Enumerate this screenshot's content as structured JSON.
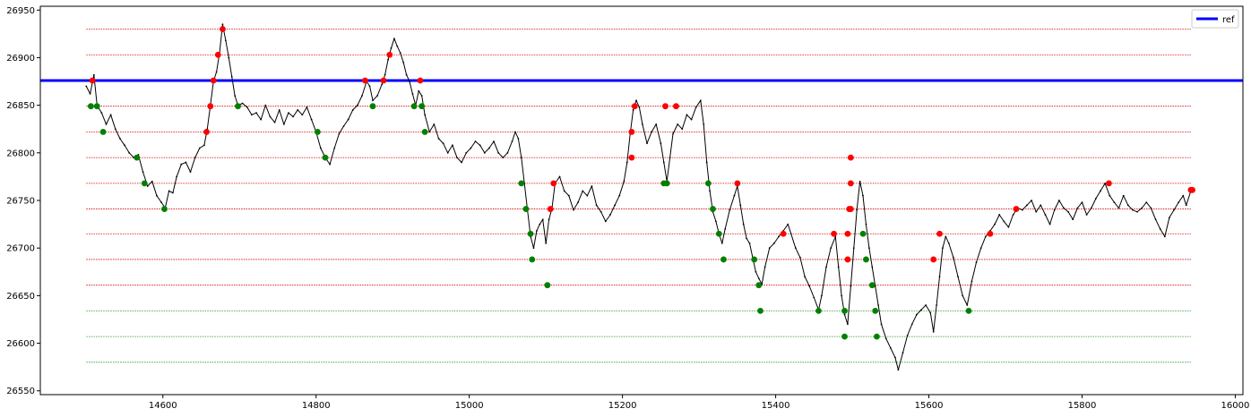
{
  "chart_data": {
    "type": "line",
    "title": "",
    "xlabel": "",
    "ylabel": "",
    "xlim": [
      14440,
      16010
    ],
    "ylim": [
      26546,
      26954
    ],
    "xticks": [
      14600,
      14800,
      15000,
      15200,
      15400,
      15600,
      15800,
      16000
    ],
    "yticks": [
      26550,
      26600,
      26650,
      26700,
      26750,
      26800,
      26850,
      26900,
      26950
    ],
    "grid": false,
    "legend": {
      "position": "top-right",
      "entries": [
        {
          "label": "ref",
          "color": "#0000ff"
        }
      ]
    },
    "reference_line": {
      "name": "ref",
      "y": 26876,
      "color": "#0000ff"
    },
    "level_lines": {
      "x_range": [
        14500,
        15942
      ],
      "red": [
        26930,
        26903,
        26849,
        26822,
        26795,
        26768,
        26741,
        26715,
        26688,
        26661
      ],
      "green": [
        26634,
        26607,
        26580
      ]
    },
    "price_series": {
      "color": "#000000",
      "points": [
        [
          14500,
          26870
        ],
        [
          14505,
          26862
        ],
        [
          14510,
          26882
        ],
        [
          14514,
          26850
        ],
        [
          14520,
          26842
        ],
        [
          14526,
          26830
        ],
        [
          14532,
          26840
        ],
        [
          14538,
          26825
        ],
        [
          14544,
          26815
        ],
        [
          14550,
          26808
        ],
        [
          14556,
          26800
        ],
        [
          14562,
          26795
        ],
        [
          14568,
          26798
        ],
        [
          14574,
          26780
        ],
        [
          14580,
          26765
        ],
        [
          14586,
          26770
        ],
        [
          14592,
          26755
        ],
        [
          14598,
          26748
        ],
        [
          14603,
          26742
        ],
        [
          14608,
          26760
        ],
        [
          14613,
          26758
        ],
        [
          14618,
          26775
        ],
        [
          14624,
          26788
        ],
        [
          14630,
          26790
        ],
        [
          14636,
          26780
        ],
        [
          14642,
          26795
        ],
        [
          14648,
          26805
        ],
        [
          14654,
          26808
        ],
        [
          14658,
          26825
        ],
        [
          14662,
          26850
        ],
        [
          14666,
          26875
        ],
        [
          14670,
          26885
        ],
        [
          14674,
          26905
        ],
        [
          14678,
          26935
        ],
        [
          14682,
          26918
        ],
        [
          14686,
          26900
        ],
        [
          14690,
          26880
        ],
        [
          14694,
          26860
        ],
        [
          14698,
          26850
        ],
        [
          14704,
          26852
        ],
        [
          14710,
          26848
        ],
        [
          14716,
          26840
        ],
        [
          14722,
          26842
        ],
        [
          14728,
          26835
        ],
        [
          14734,
          26850
        ],
        [
          14740,
          26838
        ],
        [
          14746,
          26832
        ],
        [
          14752,
          26845
        ],
        [
          14758,
          26830
        ],
        [
          14764,
          26842
        ],
        [
          14770,
          26838
        ],
        [
          14776,
          26845
        ],
        [
          14782,
          26840
        ],
        [
          14788,
          26848
        ],
        [
          14794,
          26835
        ],
        [
          14800,
          26822
        ],
        [
          14806,
          26805
        ],
        [
          14812,
          26795
        ],
        [
          14818,
          26788
        ],
        [
          14824,
          26805
        ],
        [
          14830,
          26820
        ],
        [
          14836,
          26828
        ],
        [
          14842,
          26835
        ],
        [
          14848,
          26845
        ],
        [
          14854,
          26850
        ],
        [
          14860,
          26860
        ],
        [
          14866,
          26875
        ],
        [
          14870,
          26870
        ],
        [
          14874,
          26855
        ],
        [
          14880,
          26860
        ],
        [
          14886,
          26872
        ],
        [
          14890,
          26882
        ],
        [
          14894,
          26898
        ],
        [
          14898,
          26910
        ],
        [
          14902,
          26920
        ],
        [
          14906,
          26912
        ],
        [
          14910,
          26905
        ],
        [
          14914,
          26895
        ],
        [
          14918,
          26882
        ],
        [
          14922,
          26875
        ],
        [
          14926,
          26862
        ],
        [
          14930,
          26850
        ],
        [
          14934,
          26865
        ],
        [
          14938,
          26860
        ],
        [
          14942,
          26840
        ],
        [
          14948,
          26822
        ],
        [
          14954,
          26830
        ],
        [
          14960,
          26815
        ],
        [
          14966,
          26810
        ],
        [
          14972,
          26800
        ],
        [
          14978,
          26808
        ],
        [
          14984,
          26795
        ],
        [
          14990,
          26790
        ],
        [
          14996,
          26800
        ],
        [
          15002,
          26805
        ],
        [
          15008,
          26812
        ],
        [
          15014,
          26808
        ],
        [
          15020,
          26800
        ],
        [
          15026,
          26805
        ],
        [
          15032,
          26812
        ],
        [
          15038,
          26800
        ],
        [
          15044,
          26795
        ],
        [
          15050,
          26800
        ],
        [
          15056,
          26812
        ],
        [
          15060,
          26822
        ],
        [
          15064,
          26815
        ],
        [
          15068,
          26795
        ],
        [
          15072,
          26768
        ],
        [
          15076,
          26740
        ],
        [
          15080,
          26712
        ],
        [
          15084,
          26700
        ],
        [
          15088,
          26718
        ],
        [
          15092,
          26725
        ],
        [
          15096,
          26730
        ],
        [
          15100,
          26705
        ],
        [
          15104,
          26730
        ],
        [
          15108,
          26742
        ],
        [
          15112,
          26768
        ],
        [
          15118,
          26775
        ],
        [
          15124,
          26760
        ],
        [
          15130,
          26755
        ],
        [
          15136,
          26740
        ],
        [
          15142,
          26748
        ],
        [
          15148,
          26760
        ],
        [
          15154,
          26755
        ],
        [
          15160,
          26765
        ],
        [
          15166,
          26745
        ],
        [
          15172,
          26738
        ],
        [
          15178,
          26728
        ],
        [
          15184,
          26735
        ],
        [
          15190,
          26745
        ],
        [
          15196,
          26755
        ],
        [
          15202,
          26770
        ],
        [
          15206,
          26790
        ],
        [
          15210,
          26820
        ],
        [
          15214,
          26845
        ],
        [
          15218,
          26855
        ],
        [
          15222,
          26848
        ],
        [
          15226,
          26830
        ],
        [
          15232,
          26810
        ],
        [
          15238,
          26822
        ],
        [
          15244,
          26830
        ],
        [
          15250,
          26810
        ],
        [
          15254,
          26790
        ],
        [
          15258,
          26770
        ],
        [
          15262,
          26795
        ],
        [
          15266,
          26820
        ],
        [
          15272,
          26830
        ],
        [
          15278,
          26825
        ],
        [
          15284,
          26840
        ],
        [
          15290,
          26835
        ],
        [
          15296,
          26848
        ],
        [
          15302,
          26855
        ],
        [
          15306,
          26830
        ],
        [
          15310,
          26790
        ],
        [
          15314,
          26760
        ],
        [
          15318,
          26738
        ],
        [
          15322,
          26728
        ],
        [
          15326,
          26715
        ],
        [
          15330,
          26705
        ],
        [
          15334,
          26720
        ],
        [
          15340,
          26740
        ],
        [
          15346,
          26755
        ],
        [
          15350,
          26765
        ],
        [
          15354,
          26745
        ],
        [
          15358,
          26725
        ],
        [
          15362,
          26710
        ],
        [
          15366,
          26705
        ],
        [
          15370,
          26690
        ],
        [
          15374,
          26675
        ],
        [
          15378,
          26668
        ],
        [
          15382,
          26662
        ],
        [
          15386,
          26680
        ],
        [
          15392,
          26700
        ],
        [
          15398,
          26705
        ],
        [
          15404,
          26712
        ],
        [
          15410,
          26718
        ],
        [
          15416,
          26725
        ],
        [
          15420,
          26715
        ],
        [
          15426,
          26700
        ],
        [
          15432,
          26690
        ],
        [
          15438,
          26670
        ],
        [
          15444,
          26660
        ],
        [
          15450,
          26648
        ],
        [
          15456,
          26635
        ],
        [
          15460,
          26650
        ],
        [
          15466,
          26680
        ],
        [
          15472,
          26700
        ],
        [
          15478,
          26712
        ],
        [
          15482,
          26680
        ],
        [
          15486,
          26650
        ],
        [
          15490,
          26630
        ],
        [
          15494,
          26620
        ],
        [
          15498,
          26660
        ],
        [
          15502,
          26700
        ],
        [
          15506,
          26740
        ],
        [
          15510,
          26770
        ],
        [
          15514,
          26755
        ],
        [
          15518,
          26725
        ],
        [
          15522,
          26700
        ],
        [
          15526,
          26680
        ],
        [
          15530,
          26660
        ],
        [
          15534,
          26640
        ],
        [
          15538,
          26620
        ],
        [
          15544,
          26605
        ],
        [
          15550,
          26595
        ],
        [
          15556,
          26585
        ],
        [
          15560,
          26572
        ],
        [
          15566,
          26590
        ],
        [
          15572,
          26608
        ],
        [
          15578,
          26620
        ],
        [
          15584,
          26630
        ],
        [
          15590,
          26635
        ],
        [
          15596,
          26640
        ],
        [
          15602,
          26632
        ],
        [
          15606,
          26612
        ],
        [
          15610,
          26640
        ],
        [
          15614,
          26670
        ],
        [
          15618,
          26700
        ],
        [
          15622,
          26712
        ],
        [
          15626,
          26705
        ],
        [
          15632,
          26690
        ],
        [
          15638,
          26670
        ],
        [
          15644,
          26650
        ],
        [
          15650,
          26640
        ],
        [
          15656,
          26665
        ],
        [
          15662,
          26685
        ],
        [
          15668,
          26700
        ],
        [
          15674,
          26712
        ],
        [
          15680,
          26718
        ],
        [
          15686,
          26725
        ],
        [
          15692,
          26735
        ],
        [
          15698,
          26728
        ],
        [
          15704,
          26722
        ],
        [
          15710,
          26735
        ],
        [
          15716,
          26742
        ],
        [
          15722,
          26740
        ],
        [
          15728,
          26745
        ],
        [
          15734,
          26750
        ],
        [
          15740,
          26738
        ],
        [
          15746,
          26745
        ],
        [
          15752,
          26735
        ],
        [
          15758,
          26725
        ],
        [
          15764,
          26740
        ],
        [
          15770,
          26750
        ],
        [
          15776,
          26742
        ],
        [
          15782,
          26738
        ],
        [
          15788,
          26730
        ],
        [
          15794,
          26742
        ],
        [
          15800,
          26748
        ],
        [
          15806,
          26735
        ],
        [
          15812,
          26742
        ],
        [
          15818,
          26752
        ],
        [
          15824,
          26760
        ],
        [
          15830,
          26768
        ],
        [
          15836,
          26755
        ],
        [
          15842,
          26748
        ],
        [
          15848,
          26742
        ],
        [
          15854,
          26755
        ],
        [
          15860,
          26745
        ],
        [
          15866,
          26740
        ],
        [
          15872,
          26738
        ],
        [
          15878,
          26742
        ],
        [
          15884,
          26748
        ],
        [
          15890,
          26742
        ],
        [
          15896,
          26730
        ],
        [
          15902,
          26720
        ],
        [
          15908,
          26712
        ],
        [
          15914,
          26732
        ],
        [
          15920,
          26740
        ],
        [
          15926,
          26748
        ],
        [
          15932,
          26755
        ],
        [
          15936,
          26745
        ],
        [
          15942,
          26760
        ]
      ]
    },
    "markers": {
      "red": [
        [
          14508,
          26876
        ],
        [
          14657,
          26822
        ],
        [
          14662,
          26849
        ],
        [
          14666,
          26876
        ],
        [
          14672,
          26903
        ],
        [
          14678,
          26930
        ],
        [
          14864,
          26876
        ],
        [
          14888,
          26876
        ],
        [
          14896,
          26903
        ],
        [
          14936,
          26876
        ],
        [
          15106,
          26741
        ],
        [
          15110,
          26768
        ],
        [
          15212,
          26795
        ],
        [
          15212,
          26822
        ],
        [
          15216,
          26849
        ],
        [
          15256,
          26849
        ],
        [
          15270,
          26849
        ],
        [
          15350,
          26768
        ],
        [
          15410,
          26715
        ],
        [
          15476,
          26715
        ],
        [
          15494,
          26688
        ],
        [
          15494,
          26715
        ],
        [
          15496,
          26741
        ],
        [
          15498,
          26741
        ],
        [
          15498,
          26768
        ],
        [
          15498,
          26795
        ],
        [
          15606,
          26688
        ],
        [
          15614,
          26715
        ],
        [
          15680,
          26715
        ],
        [
          15714,
          26741
        ],
        [
          15835,
          26768
        ],
        [
          15942,
          26761
        ],
        [
          15944,
          26761
        ]
      ],
      "green": [
        [
          14506,
          26849
        ],
        [
          14514,
          26849
        ],
        [
          14522,
          26822
        ],
        [
          14566,
          26795
        ],
        [
          14576,
          26768
        ],
        [
          14602,
          26741
        ],
        [
          14698,
          26849
        ],
        [
          14802,
          26822
        ],
        [
          14812,
          26795
        ],
        [
          14874,
          26849
        ],
        [
          14928,
          26849
        ],
        [
          14938,
          26849
        ],
        [
          14942,
          26822
        ],
        [
          15068,
          26768
        ],
        [
          15074,
          26741
        ],
        [
          15080,
          26715
        ],
        [
          15082,
          26688
        ],
        [
          15102,
          26661
        ],
        [
          15254,
          26768
        ],
        [
          15258,
          26768
        ],
        [
          15312,
          26768
        ],
        [
          15318,
          26741
        ],
        [
          15326,
          26715
        ],
        [
          15332,
          26688
        ],
        [
          15372,
          26688
        ],
        [
          15378,
          26661
        ],
        [
          15380,
          26634
        ],
        [
          15456,
          26634
        ],
        [
          15490,
          26634
        ],
        [
          15490,
          26607
        ],
        [
          15514,
          26715
        ],
        [
          15518,
          26688
        ],
        [
          15526,
          26661
        ],
        [
          15530,
          26634
        ],
        [
          15532,
          26607
        ],
        [
          15652,
          26634
        ]
      ]
    }
  }
}
